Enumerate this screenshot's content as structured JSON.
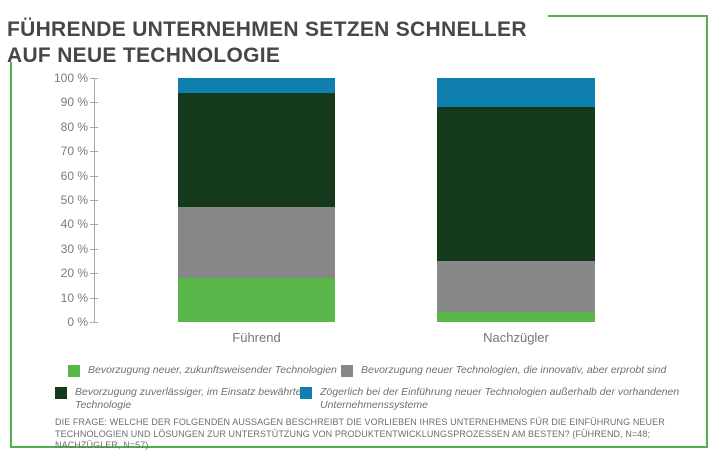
{
  "title": {
    "line1": "FÜHRENDE UNTERNEHMEN SETZEN SCHNELLER",
    "line2": "AUF NEUE TECHNOLOGIE"
  },
  "colors": {
    "frame_green": "#52b14c",
    "light_green": "#5bb64a",
    "gray": "#868787",
    "dark_green": "#14391b",
    "blue": "#0e7fae",
    "axis": "#a9a9a9",
    "title_text": "#45484a",
    "axis_text": "#797b7c",
    "legend_text": "#6d716f",
    "footnote_text": "#6c6f6d"
  },
  "chart_data": {
    "type": "bar",
    "stacked": true,
    "title": "FÜHRENDE UNTERNEHMEN SETZEN SCHNELLER AUF NEUE TECHNOLOGIE",
    "categories": [
      "Führend",
      "Nachzügler"
    ],
    "series": [
      {
        "name": "Bevorzugung neuer, zukunftsweisender Technologien",
        "color": "#5bb64a",
        "values": [
          18,
          4
        ]
      },
      {
        "name": "Bevorzugung neuer Technologien, die innovativ, aber erprobt sind",
        "color": "#868787",
        "values": [
          29,
          21
        ]
      },
      {
        "name": "Bevorzugung zuverlässiger, im Einsatz bewährter Technologie",
        "color": "#14391b",
        "values": [
          47,
          63
        ]
      },
      {
        "name": "Zögerlich bei der Einführung neuer Technologien außerhalb der vorhandenen Unternehmenssysteme",
        "color": "#0e7fae",
        "values": [
          6,
          12
        ]
      }
    ],
    "xlabel": "",
    "ylabel": "",
    "ylim": [
      0,
      100
    ],
    "yticks": [
      100,
      90,
      80,
      70,
      60,
      50,
      40,
      30,
      20,
      10,
      0
    ],
    "ytick_labels": [
      "100 %",
      "90 %",
      "80 %",
      "70 %",
      "60 %",
      "50 %",
      "40 %",
      "30 %",
      "20 %",
      "10 %",
      "0 %"
    ],
    "grid": false,
    "legend_position": "bottom"
  },
  "legend": {
    "items": [
      {
        "label": "Bevorzugung neuer, zukunftsweisender Technologien",
        "color": "#5bb64a"
      },
      {
        "label": "Bevorzugung neuer Technologien, die innovativ, aber erprobt sind",
        "color": "#868787"
      },
      {
        "label": "Bevorzugung zuverlässiger, im Einsatz bewährter Technologie",
        "color": "#14391b"
      },
      {
        "label": "Zögerlich bei der Einführung neuer Technologien außerhalb der vorhandenen Unternehmenssysteme",
        "color": "#0e7fae"
      }
    ]
  },
  "footnote": "DIE FRAGE: WELCHE DER FOLGENDEN AUSSAGEN BESCHREIBT DIE VORLIEBEN IHRES UNTERNEHMENS FÜR DIE EINFÜHRUNG NEUER TECHNOLOGIEN UND LÖSUNGEN ZUR UNTERSTÜTZUNG VON PRODUKTENTWICKLUNGSPROZESSEN AM BESTEN? (FÜHREND, N=48; NACHZÜGLER, N=57)"
}
